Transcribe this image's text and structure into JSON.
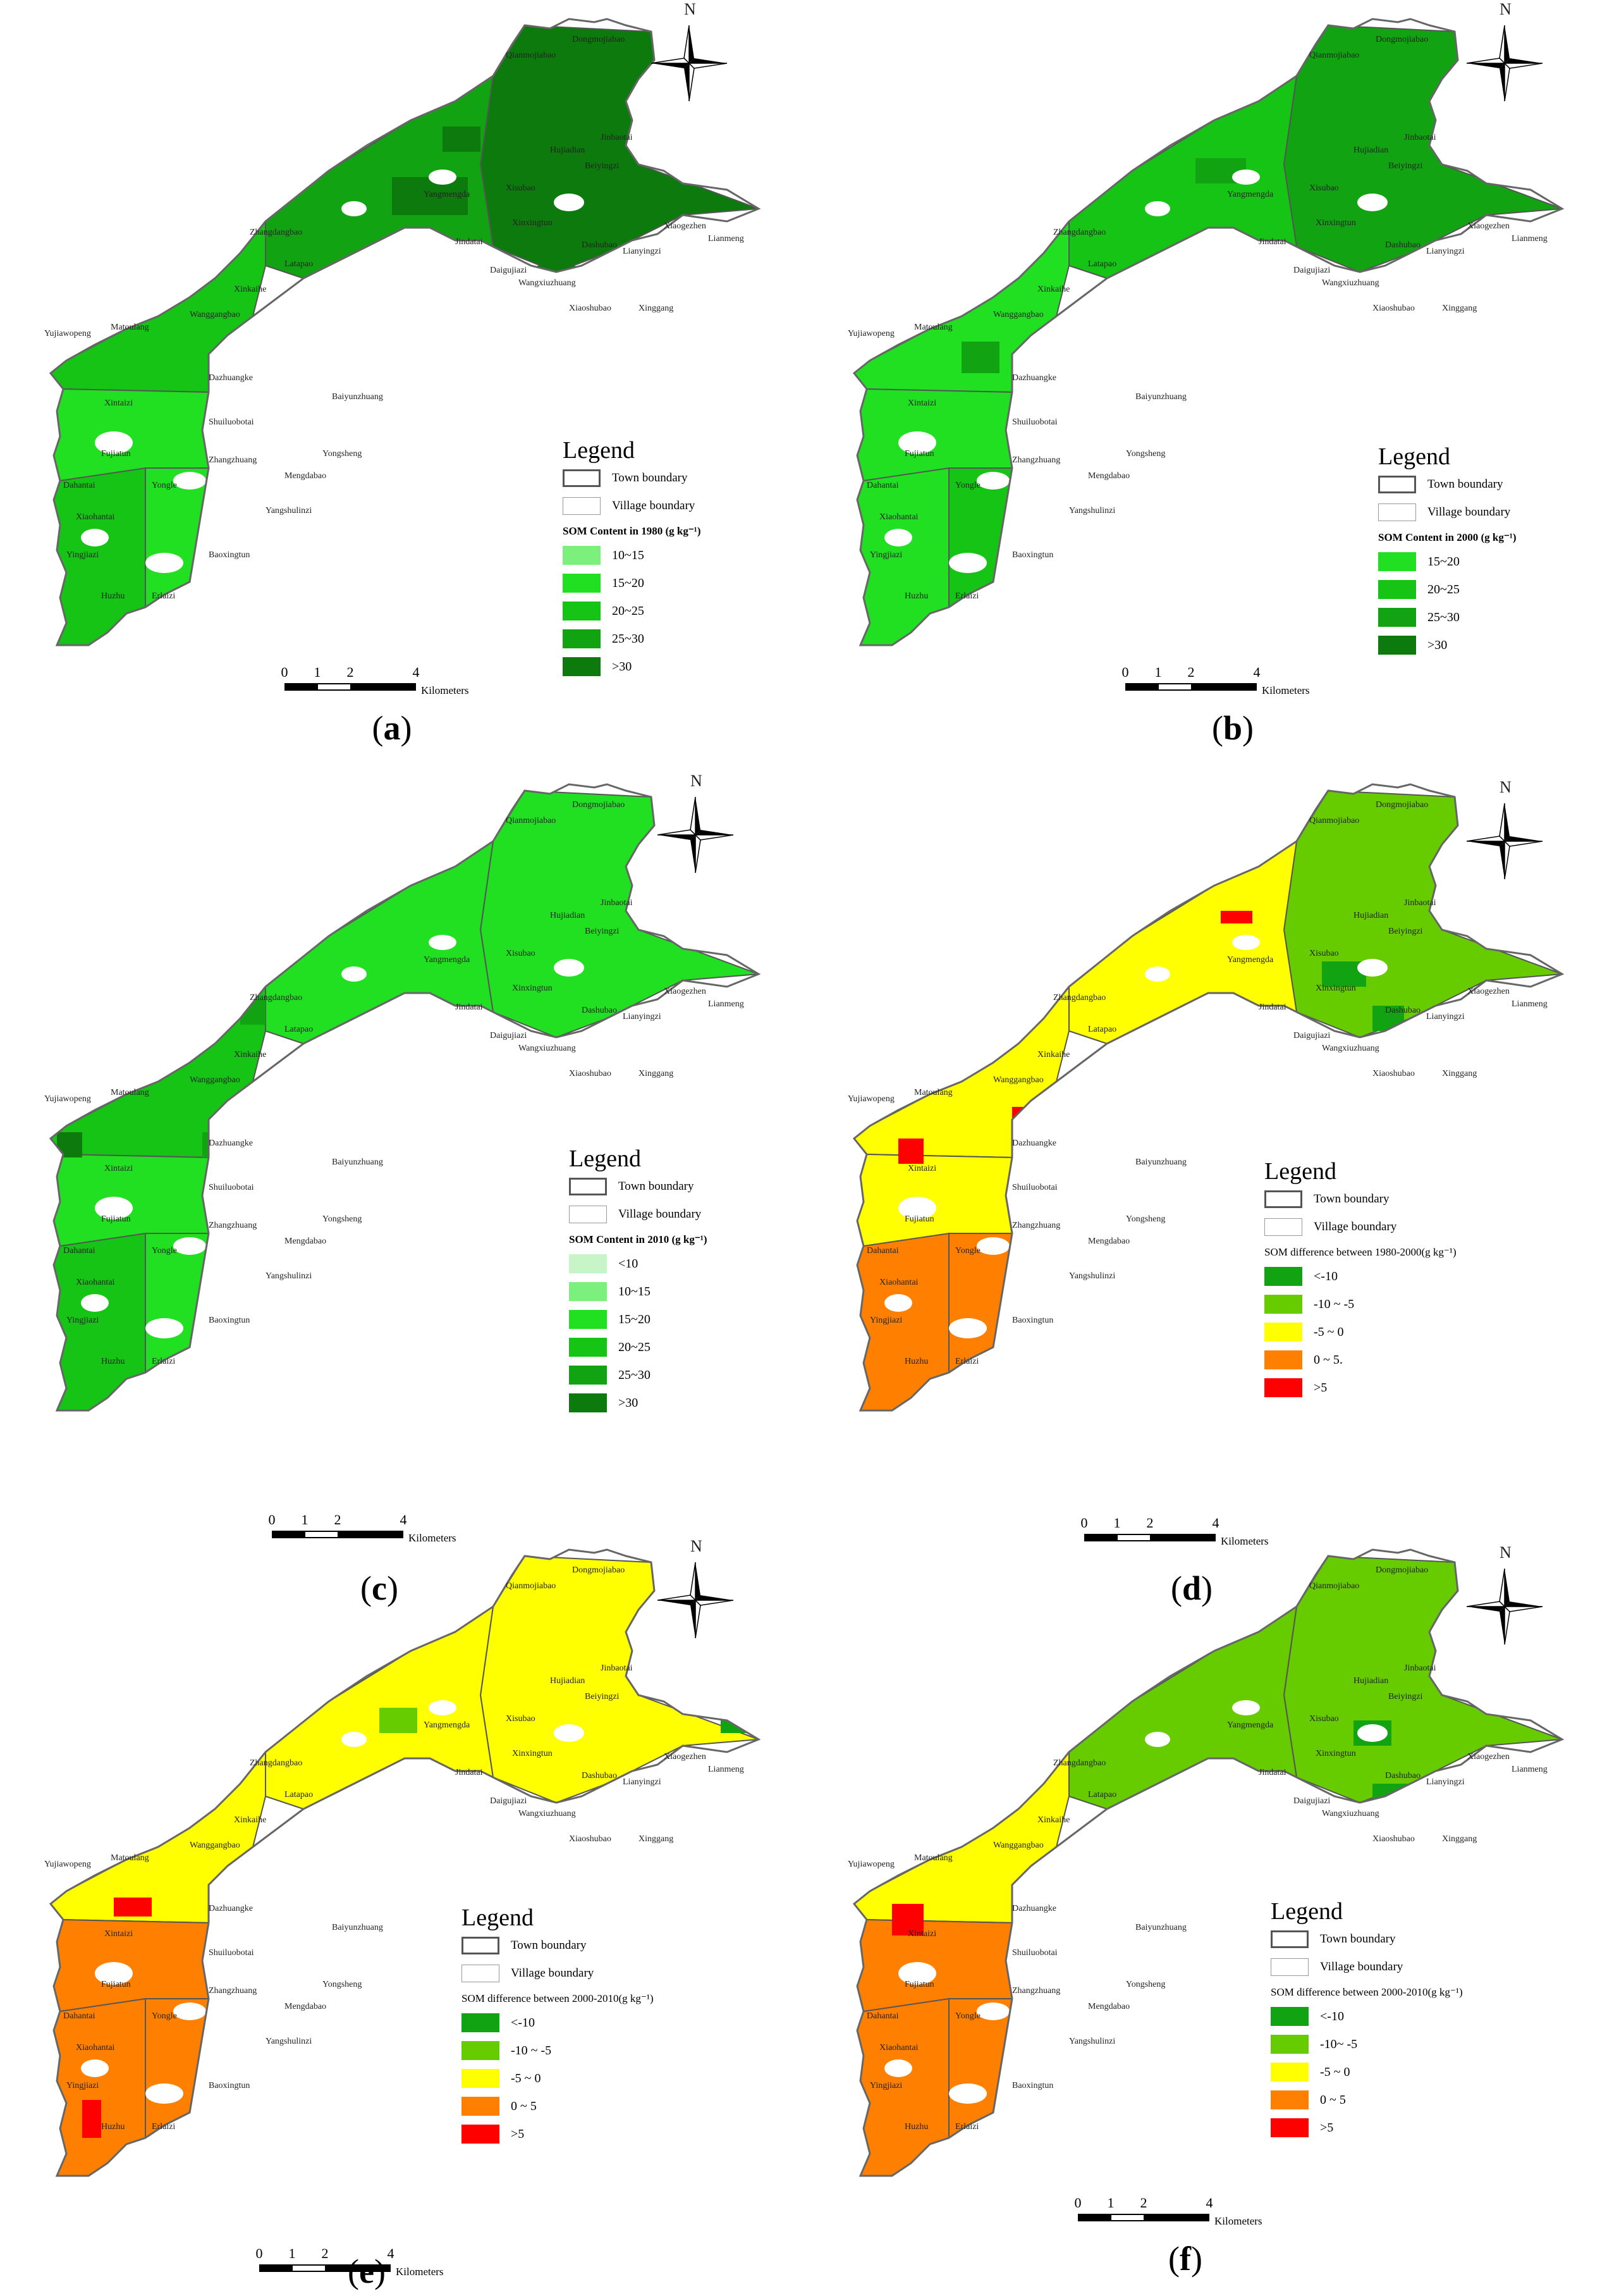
{
  "colors": {
    "green_lt": "#7CF07C",
    "green_1": "#21E021",
    "green_2": "#15C415",
    "green_3": "#12A312",
    "green_4": "#0D7A0D",
    "green_pale": "#C8F5C8",
    "diff_dk": "#12A312",
    "diff_lt": "#66CC00",
    "yellow": "#FFFF00",
    "orange": "#FF8000",
    "red": "#FF0000"
  },
  "common": {
    "north": "N",
    "kilometers": "Kilometers",
    "scale_ticks": [
      "0",
      "1",
      "2",
      "4"
    ],
    "legend_title": "Legend",
    "town_boundary": "Town boundary",
    "village_boundary": "Village boundary"
  },
  "village_names": [
    "Qianmojiabao",
    "Dongmojiabao",
    "Jinbaotai",
    "Beiyingzi",
    "Hujiadian",
    "Xisubao",
    "Yangmengda",
    "Xinxingtun",
    "Zhangdangbao",
    "Jindatai",
    "Dashubao",
    "Latapao",
    "Daigujiazi",
    "Wangxiuzhuang",
    "Xiaogezhen",
    "Lianyingzi",
    "Lianmeng",
    "Xiaoshubao",
    "Xinggang",
    "Xinkaihe",
    "Wanggangbao",
    "Matoulang",
    "Yujiawopeng",
    "Dazhuangke",
    "Baiyunzhuang",
    "Xintaizi",
    "Shuiluobotai",
    "Fujiatun",
    "Zhangzhuang",
    "Yongsheng",
    "Dahantai",
    "Yongle",
    "Mengdabao",
    "Xiaohantai",
    "Yangshulinzi",
    "Yingjiazi",
    "Baoxingtun",
    "Huzhu",
    "Erlaizi"
  ],
  "panels": [
    {
      "label": "a",
      "legend_sub": "SOM Content in 1980 (g kg⁻¹)",
      "classes": [
        {
          "label": "10~15",
          "color": "#7CF07C"
        },
        {
          "label": "15~20",
          "color": "#21E021"
        },
        {
          "label": "20~25",
          "color": "#15C415"
        },
        {
          "label": "25~30",
          "color": "#12A312"
        },
        {
          "label": ">30",
          "color": "#0D7A0D"
        }
      ]
    },
    {
      "label": "b",
      "legend_sub": "SOM Content in 2000 (g kg⁻¹)",
      "classes": [
        {
          "label": "15~20",
          "color": "#21E021"
        },
        {
          "label": "20~25",
          "color": "#15C415"
        },
        {
          "label": "25~30",
          "color": "#12A312"
        },
        {
          "label": ">30",
          "color": "#0D7A0D"
        }
      ]
    },
    {
      "label": "c",
      "legend_sub": "SOM Content in 2010 (g kg⁻¹)",
      "classes": [
        {
          "label": "<10",
          "color": "#C8F5C8"
        },
        {
          "label": "10~15",
          "color": "#7CF07C"
        },
        {
          "label": "15~20",
          "color": "#21E021"
        },
        {
          "label": "20~25",
          "color": "#15C415"
        },
        {
          "label": "25~30",
          "color": "#12A312"
        },
        {
          "label": ">30",
          "color": "#0D7A0D"
        }
      ]
    },
    {
      "label": "d",
      "legend_sub": "SOM difference between 1980-2000(g kg⁻¹)",
      "classes": [
        {
          "label": "<-10",
          "color": "#12A312"
        },
        {
          "label": "-10 ~ -5",
          "color": "#66CC00"
        },
        {
          "label": "-5 ~ 0",
          "color": "#FFFF00"
        },
        {
          "label": "0 ~ 5.",
          "color": "#FF8000"
        },
        {
          "label": ">5",
          "color": "#FF0000"
        }
      ]
    },
    {
      "label": "e",
      "legend_sub": "SOM difference between 2000-2010(g kg⁻¹)",
      "classes": [
        {
          "label": "<-10",
          "color": "#12A312"
        },
        {
          "label": "-10 ~ -5",
          "color": "#66CC00"
        },
        {
          "label": "-5 ~ 0",
          "color": "#FFFF00"
        },
        {
          "label": "0 ~ 5",
          "color": "#FF8000"
        },
        {
          "label": ">5",
          "color": "#FF0000"
        }
      ]
    },
    {
      "label": "f",
      "legend_sub": "SOM difference between 2000-2010(g kg⁻¹)",
      "classes": [
        {
          "label": "<-10",
          "color": "#12A312"
        },
        {
          "label": "-10~ -5",
          "color": "#66CC00"
        },
        {
          "label": "-5 ~ 0",
          "color": "#FFFF00"
        },
        {
          "label": "0 ~ 5",
          "color": "#FF8000"
        },
        {
          "label": ">5",
          "color": "#FF0000"
        }
      ]
    }
  ]
}
